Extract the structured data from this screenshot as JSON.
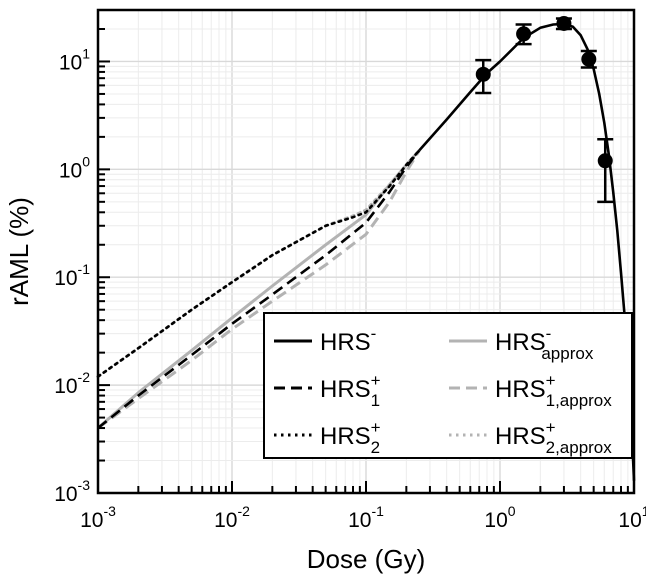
{
  "chart_data": {
    "type": "line",
    "xlabel": "Dose (Gy)",
    "ylabel": "rAML (%)",
    "xscale": "log",
    "yscale": "log",
    "xlim": [
      0.001,
      10
    ],
    "ylim": [
      0.001,
      30
    ],
    "x_ticks": [
      {
        "base": "10",
        "exp": "-3",
        "value": 0.001
      },
      {
        "base": "10",
        "exp": "-2",
        "value": 0.01
      },
      {
        "base": "10",
        "exp": "-1",
        "value": 0.1
      },
      {
        "base": "10",
        "exp": "0",
        "value": 1
      },
      {
        "base": "10",
        "exp": "1",
        "value": 10
      }
    ],
    "y_ticks": [
      {
        "base": "10",
        "exp": "-3",
        "value": 0.001
      },
      {
        "base": "10",
        "exp": "-2",
        "value": 0.01
      },
      {
        "base": "10",
        "exp": "-1",
        "value": 0.1
      },
      {
        "base": "10",
        "exp": "0",
        "value": 1
      },
      {
        "base": "10",
        "exp": "1",
        "value": 10
      }
    ],
    "grid": true,
    "legend_position": "bottom-right",
    "series": [
      {
        "name": "HRS-",
        "legend_base": "HRS",
        "legend_sup": "-",
        "legend_sub": "",
        "style": "solid",
        "color": "#000000",
        "x": [
          0.25,
          0.4,
          0.6,
          0.8,
          1.0,
          1.5,
          2.0,
          2.5,
          3.0,
          3.5,
          4.0,
          4.5,
          5.0,
          5.5,
          6.0,
          6.5,
          7.0,
          7.5,
          8.0,
          8.5,
          9.0,
          9.5,
          10.0
        ],
        "y": [
          1.5,
          2.9,
          5.2,
          7.8,
          10.0,
          16.5,
          20.5,
          22.0,
          22.3,
          21.0,
          17.5,
          13.0,
          8.5,
          5.0,
          2.7,
          1.35,
          0.62,
          0.27,
          0.11,
          0.045,
          0.017,
          0.0055,
          0.0013
        ]
      },
      {
        "name": "HRS+1",
        "legend_base": "HRS",
        "legend_sup": "+",
        "legend_sub": "1",
        "style": "dashed",
        "color": "#000000",
        "x": [
          0.001,
          0.002,
          0.005,
          0.01,
          0.02,
          0.05,
          0.1,
          0.15,
          0.2,
          0.25
        ],
        "y": [
          0.004,
          0.008,
          0.019,
          0.037,
          0.069,
          0.16,
          0.32,
          0.62,
          1.05,
          1.5
        ]
      },
      {
        "name": "HRS+2",
        "legend_base": "HRS",
        "legend_sup": "+",
        "legend_sub": "2",
        "style": "dotted",
        "color": "#000000",
        "x": [
          0.001,
          0.002,
          0.005,
          0.01,
          0.02,
          0.05,
          0.08,
          0.1,
          0.15,
          0.2,
          0.25
        ],
        "y": [
          0.012,
          0.022,
          0.05,
          0.09,
          0.16,
          0.3,
          0.36,
          0.4,
          0.7,
          1.1,
          1.5
        ]
      },
      {
        "name": "HRS-approx",
        "legend_base": "HRS",
        "legend_sup": "-",
        "legend_sub": "approx",
        "style": "solid",
        "color": "#b3b3b3",
        "x": [
          0.001,
          0.002,
          0.005,
          0.01,
          0.02,
          0.05,
          0.1,
          0.15,
          0.2,
          0.25
        ],
        "y": [
          0.004,
          0.0085,
          0.021,
          0.042,
          0.083,
          0.2,
          0.38,
          0.72,
          1.1,
          1.5
        ]
      },
      {
        "name": "HRS+1,approx",
        "legend_base": "HRS",
        "legend_sup": "+",
        "legend_sub": "1,approx",
        "style": "dashed",
        "color": "#b3b3b3",
        "x": [
          0.001,
          0.002,
          0.005,
          0.01,
          0.02,
          0.05,
          0.1,
          0.15,
          0.2,
          0.25
        ],
        "y": [
          0.004,
          0.0075,
          0.017,
          0.033,
          0.06,
          0.13,
          0.25,
          0.5,
          0.95,
          1.5
        ]
      },
      {
        "name": "HRS+2,approx",
        "legend_base": "HRS",
        "legend_sup": "+",
        "legend_sub": "2,approx",
        "style": "dotted",
        "color": "#b3b3b3",
        "x": [
          0.001,
          0.002,
          0.005,
          0.01,
          0.02,
          0.05,
          0.08,
          0.1,
          0.15,
          0.2,
          0.25
        ],
        "y": [
          0.012,
          0.022,
          0.05,
          0.09,
          0.16,
          0.3,
          0.37,
          0.42,
          0.72,
          1.1,
          1.5
        ]
      }
    ],
    "data_points": {
      "x": [
        0.75,
        1.5,
        3.0,
        4.6,
        6.1
      ],
      "y": [
        7.6,
        18.0,
        22.5,
        10.5,
        1.2
      ],
      "y_err_low": [
        5.1,
        14.5,
        20.0,
        8.8,
        0.5
      ],
      "y_err_high": [
        10.3,
        22.0,
        25.0,
        12.5,
        1.9
      ]
    }
  }
}
